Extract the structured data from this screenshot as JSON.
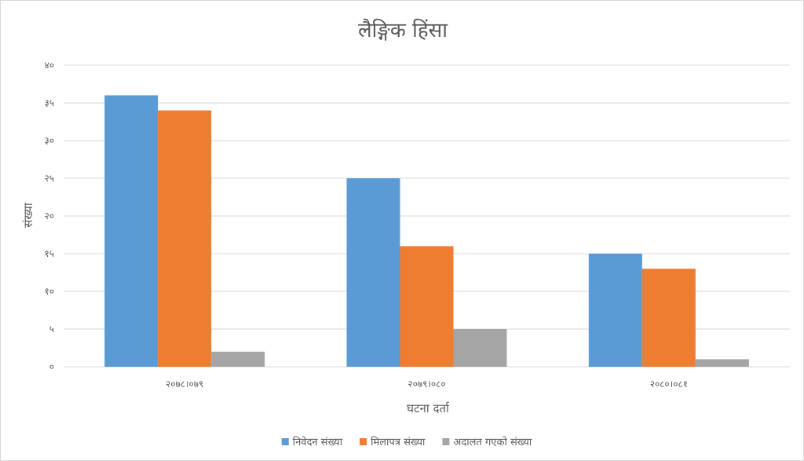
{
  "chart_data": {
    "type": "bar",
    "title": "लैङ्गिक हिंसा",
    "xlabel": "घटना दर्ता",
    "ylabel": "संख्या",
    "categories": [
      "२०७८।०७९",
      "२०७९।०८०",
      "२०८०।०८१"
    ],
    "series": [
      {
        "name": "निवेदन संख्या",
        "color": "#5b9bd5",
        "values": [
          36,
          25,
          15
        ]
      },
      {
        "name": "मिलापत्र संख्या",
        "color": "#ed7d31",
        "values": [
          34,
          16,
          13
        ]
      },
      {
        "name": "अदालत गएको संख्या",
        "color": "#a5a5a5",
        "values": [
          2,
          5,
          1
        ]
      }
    ],
    "ylim": [
      0,
      40
    ],
    "yticks": [
      0,
      5,
      10,
      15,
      20,
      25,
      30,
      35,
      40
    ],
    "ytick_labels": [
      "०",
      "५",
      "१०",
      "१५",
      "२०",
      "२५",
      "३०",
      "३५",
      "४०"
    ],
    "grid": true,
    "legend_position": "bottom",
    "gridline_color": "#d9d9d9",
    "text_color": "#595959"
  }
}
